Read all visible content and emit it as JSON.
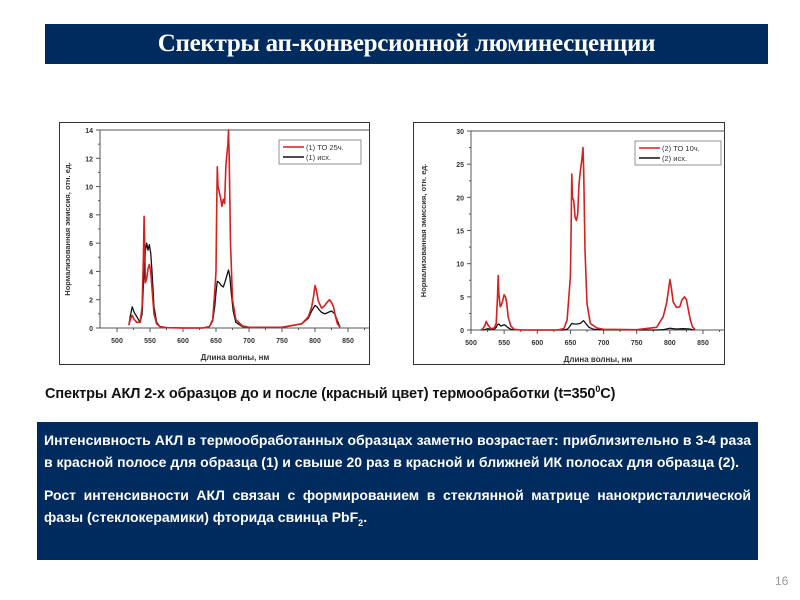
{
  "slide": {
    "title": "Спектры ап-конверсионной люминесценции",
    "page_number": "16",
    "colors": {
      "title_bg": "#002b5e",
      "box_bg": "#002b5e",
      "series_treated": "#d42020",
      "series_original": "#111111"
    }
  },
  "caption": {
    "text": "Спектры АКЛ 2-х образцов до и после (красный цвет) термообработки (t=350",
    "sup": "0",
    "tail": "C)"
  },
  "info": {
    "p1": "Интенсивность АКЛ в термообработанных образцах заметно возрастает: приблизительно в 3-4 раза в красной полосе для образца (1) и свыше 20 раз в красной и ближней ИК полосах для образца (2).",
    "p2_main": "Рост интенсивности АКЛ связан с формированием в стеклянной матрице нанокристаллической фазы (стеклокерамики) фторида свинца PbF",
    "p2_sub": "2",
    "p2_end": "."
  },
  "chart_data": [
    {
      "type": "line",
      "title": "",
      "xlabel": "Длина волны, нм",
      "ylabel": "Нормализованная эмиссия, отн. ед.",
      "xlim": [
        475,
        885
      ],
      "ylim": [
        0,
        14
      ],
      "xticks": [
        500,
        550,
        600,
        650,
        700,
        750,
        800,
        850
      ],
      "yticks": [
        0,
        2,
        4,
        6,
        8,
        10,
        12,
        14
      ],
      "grid": false,
      "legend_position": "upper right",
      "series": [
        {
          "name": "(1) ТО 25ч.",
          "color": "#d42020",
          "x": [
            518,
            520,
            523,
            526,
            530,
            535,
            538,
            540,
            541,
            542,
            543,
            545,
            547,
            549,
            551,
            553,
            556,
            560,
            565,
            575,
            600,
            630,
            640,
            645,
            648,
            650,
            651,
            652,
            653,
            655,
            657,
            659,
            661,
            663,
            665,
            667,
            668,
            669,
            670,
            672,
            675,
            680,
            690,
            700,
            750,
            780,
            790,
            795,
            798,
            800,
            802,
            805,
            810,
            815,
            818,
            822,
            825,
            828,
            831,
            834,
            838
          ],
          "values": [
            0.2,
            0.6,
            0.9,
            0.6,
            0.4,
            0.4,
            1.5,
            5.0,
            7.9,
            6.0,
            3.2,
            3.5,
            4.2,
            4.5,
            4.0,
            2.8,
            1.0,
            0.3,
            0.1,
            0.02,
            0,
            0,
            0.1,
            0.6,
            2.5,
            4.0,
            8.5,
            11.4,
            10.0,
            9.6,
            9.2,
            8.6,
            9.1,
            8.8,
            11.5,
            12.5,
            13.0,
            14.0,
            12.0,
            6.0,
            2.0,
            0.6,
            0.15,
            0.05,
            0.05,
            0.3,
            0.8,
            1.5,
            2.3,
            3.0,
            2.7,
            1.9,
            1.4,
            1.6,
            1.8,
            2.0,
            1.8,
            1.5,
            0.8,
            0.3,
            0.05
          ]
        },
        {
          "name": "(1) исх.",
          "color": "#111111",
          "x": [
            518,
            520,
            523,
            526,
            530,
            535,
            538,
            540,
            543,
            545,
            547,
            549,
            551,
            553,
            556,
            560,
            565,
            575,
            600,
            630,
            640,
            645,
            648,
            650,
            652,
            655,
            658,
            661,
            664,
            667,
            669,
            671,
            673,
            676,
            680,
            690,
            700,
            750,
            780,
            790,
            795,
            800,
            803,
            806,
            810,
            815,
            820,
            825,
            830,
            834,
            838
          ],
          "values": [
            0.2,
            0.8,
            1.5,
            1.1,
            0.8,
            0.4,
            1.0,
            3.0,
            5.5,
            6.0,
            5.5,
            5.9,
            5.3,
            4.0,
            1.5,
            0.4,
            0.1,
            0.02,
            0,
            0,
            0.1,
            0.5,
            1.5,
            2.5,
            3.3,
            3.2,
            3.0,
            2.9,
            3.3,
            3.8,
            4.1,
            3.6,
            2.5,
            1.2,
            0.4,
            0.1,
            0.05,
            0.05,
            0.3,
            0.7,
            1.2,
            1.6,
            1.5,
            1.3,
            1.1,
            1.0,
            1.1,
            1.2,
            1.0,
            0.5,
            0.05
          ]
        }
      ]
    },
    {
      "type": "line",
      "title": "",
      "xlabel": "Длина волны, нм",
      "ylabel": "Нормализованная эмиссия, отн. ед.",
      "xlim": [
        475,
        885
      ],
      "ylim": [
        0,
        30
      ],
      "xticks": [
        500,
        550,
        600,
        650,
        700,
        750,
        800,
        850
      ],
      "yticks": [
        0,
        5,
        10,
        15,
        20,
        25,
        30
      ],
      "grid": false,
      "legend_position": "upper right",
      "series": [
        {
          "name": "(2) ТО 10ч.",
          "color": "#d42020",
          "x": [
            515,
            518,
            521,
            523,
            526,
            530,
            535,
            538,
            540,
            541,
            542,
            544,
            546,
            548,
            550,
            552,
            554,
            556,
            560,
            565,
            575,
            600,
            630,
            640,
            645,
            648,
            650,
            651,
            652,
            653,
            655,
            657,
            659,
            661,
            663,
            665,
            667,
            668,
            669,
            670,
            672,
            675,
            680,
            690,
            700,
            750,
            780,
            790,
            795,
            798,
            800,
            802,
            805,
            810,
            815,
            818,
            822,
            825,
            828,
            831,
            834,
            838
          ],
          "values": [
            0,
            0.2,
            0.7,
            1.3,
            0.7,
            0.2,
            0.3,
            1.0,
            5.0,
            8.2,
            5.5,
            3.5,
            3.8,
            4.5,
            5.3,
            5.0,
            4.0,
            2.0,
            0.6,
            0.1,
            0.02,
            0,
            0,
            0.2,
            1.5,
            5.5,
            8.0,
            15.0,
            23.5,
            20.0,
            19.5,
            17.0,
            16.5,
            17.5,
            22.0,
            24.0,
            25.5,
            26.5,
            27.5,
            24.0,
            12.0,
            4.0,
            1.0,
            0.3,
            0.1,
            0.05,
            0.4,
            2.0,
            4.0,
            6.0,
            7.6,
            6.5,
            4.2,
            3.4,
            3.5,
            4.5,
            5.0,
            4.6,
            3.0,
            1.5,
            0.5,
            0.05
          ]
        },
        {
          "name": "(2) исх.",
          "color": "#111111",
          "x": [
            515,
            520,
            525,
            530,
            535,
            538,
            540,
            542,
            545,
            548,
            550,
            552,
            555,
            560,
            565,
            600,
            640,
            645,
            648,
            650,
            652,
            655,
            660,
            665,
            668,
            670,
            673,
            678,
            685,
            700,
            750,
            780,
            790,
            795,
            800,
            805,
            810,
            820,
            830,
            836
          ],
          "values": [
            0,
            0.05,
            0.2,
            0.1,
            0.1,
            0.4,
            0.8,
            0.9,
            0.6,
            0.7,
            0.8,
            0.7,
            0.4,
            0.1,
            0.02,
            0,
            0,
            0.1,
            0.4,
            0.7,
            1.0,
            0.9,
            0.9,
            1.0,
            1.3,
            1.4,
            1.0,
            0.4,
            0.1,
            0.02,
            0,
            0,
            0.05,
            0.15,
            0.25,
            0.2,
            0.15,
            0.2,
            0.15,
            0
          ]
        }
      ]
    }
  ]
}
